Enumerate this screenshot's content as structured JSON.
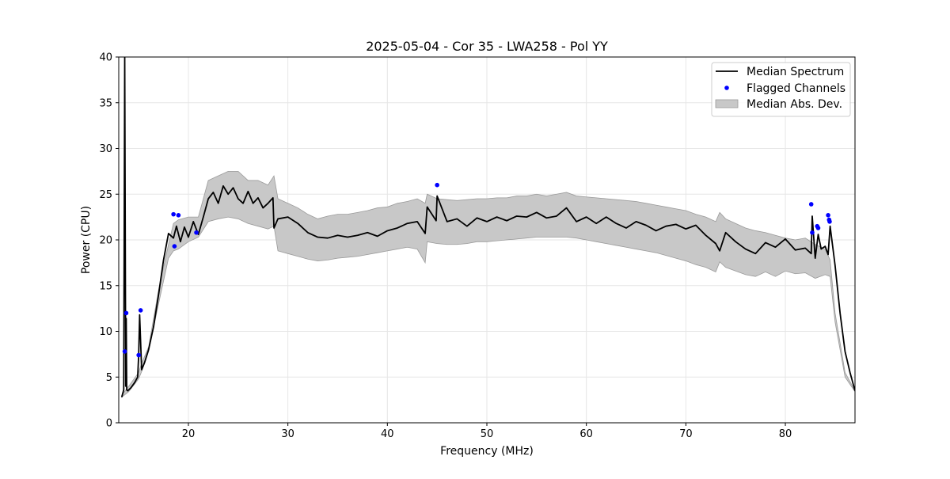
{
  "chart_data": {
    "type": "line",
    "title": "2025-05-04 - Cor 35 - LWA258 - Pol YY",
    "xlabel": "Frequency (MHz)",
    "ylabel": "Power (CPU)",
    "xlim": [
      13,
      87
    ],
    "ylim": [
      0,
      40
    ],
    "xticks": [
      20,
      30,
      40,
      50,
      60,
      70,
      80
    ],
    "yticks": [
      0,
      5,
      10,
      15,
      20,
      25,
      30,
      35,
      40
    ],
    "grid": true,
    "legend_position": "top-right",
    "colors": {
      "median": "#000000",
      "flagged": "#0000ff",
      "band_fill": "#c8c8c8",
      "band_edge": "#9a9a9a",
      "grid": "#e6e6e6"
    },
    "legend": [
      {
        "label": "Median Spectrum",
        "kind": "line"
      },
      {
        "label": "Flagged Channels",
        "kind": "marker"
      },
      {
        "label": "Median Abs. Dev.",
        "kind": "patch"
      }
    ],
    "series": [
      {
        "name": "Median Spectrum",
        "x": [
          13.3,
          13.5,
          13.6,
          13.7,
          13.75,
          13.8,
          13.9,
          14.2,
          14.6,
          14.9,
          15.0,
          15.1,
          15.3,
          15.6,
          16.0,
          16.5,
          17.0,
          17.5,
          18.0,
          18.5,
          18.8,
          19.2,
          19.6,
          20.0,
          20.5,
          21.0,
          21.5,
          22.0,
          22.5,
          23.0,
          23.5,
          24.0,
          24.5,
          25.0,
          25.5,
          26.0,
          26.5,
          27.0,
          27.5,
          28.0,
          28.5,
          28.6,
          29.0,
          30.0,
          31.0,
          32.0,
          33.0,
          34.0,
          35.0,
          36.0,
          37.0,
          38.0,
          39.0,
          40.0,
          41.0,
          42.0,
          43.0,
          43.8,
          44.0,
          44.9,
          45.0,
          46.0,
          47.0,
          48.0,
          49.0,
          50.0,
          51.0,
          52.0,
          53.0,
          54.0,
          55.0,
          56.0,
          57.0,
          58.0,
          59.0,
          60.0,
          61.0,
          62.0,
          63.0,
          64.0,
          65.0,
          66.0,
          67.0,
          68.0,
          69.0,
          70.0,
          71.0,
          72.0,
          73.0,
          73.4,
          74.0,
          75.0,
          76.0,
          77.0,
          78.0,
          79.0,
          80.0,
          81.0,
          82.0,
          82.6,
          82.7,
          83.0,
          83.3,
          83.6,
          84.0,
          84.3,
          84.5,
          85.0,
          85.5,
          86.0,
          86.5,
          87.0
        ],
        "values": [
          2.8,
          3.6,
          40.0,
          4.0,
          11.4,
          3.6,
          3.5,
          3.8,
          4.4,
          5.0,
          7.3,
          11.8,
          5.8,
          6.6,
          8.0,
          10.5,
          14.0,
          17.8,
          20.7,
          20.2,
          21.5,
          19.8,
          21.4,
          20.3,
          22.0,
          20.6,
          22.5,
          24.5,
          25.2,
          24.0,
          25.9,
          25.0,
          25.7,
          24.5,
          24.0,
          25.3,
          24.0,
          24.6,
          23.5,
          24.0,
          24.6,
          21.3,
          22.3,
          22.5,
          21.8,
          20.8,
          20.3,
          20.2,
          20.5,
          20.3,
          20.5,
          20.8,
          20.4,
          21.0,
          21.3,
          21.8,
          22.0,
          20.7,
          23.6,
          22.1,
          24.8,
          22.0,
          22.3,
          21.5,
          22.4,
          22.0,
          22.5,
          22.1,
          22.6,
          22.5,
          23.0,
          22.4,
          22.6,
          23.5,
          22.0,
          22.5,
          21.8,
          22.5,
          21.8,
          21.3,
          22.0,
          21.6,
          21.0,
          21.5,
          21.7,
          21.2,
          21.6,
          20.5,
          19.6,
          18.8,
          20.8,
          19.8,
          19.0,
          18.5,
          19.7,
          19.2,
          20.1,
          18.9,
          19.1,
          18.5,
          22.6,
          18.0,
          20.6,
          19.0,
          19.3,
          18.4,
          21.5,
          17.2,
          12.0,
          7.8,
          5.5,
          3.5
        ]
      },
      {
        "name": "Median Abs. Dev.",
        "x": [
          13.3,
          14.0,
          15.0,
          15.3,
          16.0,
          17.0,
          18.0,
          18.5,
          19.0,
          20.0,
          21.0,
          22.0,
          23.0,
          24.0,
          25.0,
          26.0,
          27.0,
          28.0,
          28.6,
          29.0,
          30.0,
          31.0,
          32.0,
          33.0,
          34.0,
          35.0,
          36.0,
          37.0,
          38.0,
          39.0,
          40.0,
          41.0,
          42.0,
          43.0,
          43.8,
          44.0,
          45.0,
          46.0,
          47.0,
          48.0,
          49.0,
          50.0,
          51.0,
          52.0,
          53.0,
          54.0,
          55.0,
          56.0,
          57.0,
          58.0,
          59.0,
          60.0,
          61.0,
          62.0,
          63.0,
          64.0,
          65.0,
          66.0,
          67.0,
          68.0,
          69.0,
          70.0,
          71.0,
          72.0,
          73.0,
          73.4,
          74.0,
          75.0,
          76.0,
          77.0,
          78.0,
          79.0,
          80.0,
          81.0,
          82.0,
          83.0,
          84.0,
          84.5,
          85.0,
          86.0,
          87.0
        ],
        "upper": [
          3.0,
          4.0,
          5.5,
          6.5,
          8.3,
          14.5,
          19.5,
          21.8,
          22.2,
          22.5,
          22.5,
          26.5,
          27.0,
          27.5,
          27.5,
          26.5,
          26.5,
          26.0,
          27.0,
          24.5,
          24.0,
          23.5,
          22.8,
          22.3,
          22.6,
          22.8,
          22.8,
          23.0,
          23.2,
          23.5,
          23.6,
          24.0,
          24.2,
          24.5,
          24.0,
          25.0,
          24.5,
          24.4,
          24.3,
          24.4,
          24.5,
          24.5,
          24.6,
          24.6,
          24.8,
          24.8,
          25.0,
          24.8,
          25.0,
          25.2,
          24.8,
          24.7,
          24.6,
          24.5,
          24.4,
          24.3,
          24.2,
          24.0,
          23.8,
          23.6,
          23.4,
          23.2,
          22.8,
          22.5,
          22.0,
          23.0,
          22.3,
          21.8,
          21.3,
          21.0,
          20.8,
          20.5,
          20.2,
          20.0,
          20.2,
          19.5,
          19.0,
          17.8,
          12.0,
          5.5,
          3.5
        ],
        "lower": [
          2.8,
          3.4,
          4.8,
          5.6,
          7.8,
          13.0,
          18.0,
          18.8,
          19.0,
          19.8,
          20.3,
          22.0,
          22.3,
          22.5,
          22.3,
          21.8,
          21.5,
          21.2,
          21.5,
          18.8,
          18.5,
          18.2,
          17.9,
          17.7,
          17.8,
          18.0,
          18.1,
          18.2,
          18.4,
          18.6,
          18.8,
          19.0,
          19.2,
          19.0,
          17.5,
          19.8,
          19.6,
          19.5,
          19.5,
          19.6,
          19.8,
          19.8,
          19.9,
          20.0,
          20.1,
          20.2,
          20.3,
          20.3,
          20.3,
          20.3,
          20.2,
          20.0,
          19.8,
          19.6,
          19.4,
          19.2,
          19.0,
          18.8,
          18.6,
          18.3,
          18.0,
          17.7,
          17.3,
          17.0,
          16.5,
          17.6,
          17.0,
          16.6,
          16.2,
          16.0,
          16.5,
          16.0,
          16.6,
          16.3,
          16.4,
          15.8,
          16.2,
          16.0,
          11.0,
          5.0,
          3.4
        ]
      },
      {
        "name": "Flagged Channels",
        "x": [
          13.6,
          13.75,
          15.0,
          15.2,
          18.5,
          18.6,
          19.0,
          20.8,
          45.0,
          82.6,
          82.7,
          83.2,
          83.3,
          84.3,
          84.4,
          84.45
        ],
        "values": [
          7.8,
          12.0,
          7.4,
          12.3,
          22.8,
          19.3,
          22.7,
          20.8,
          26.0,
          23.9,
          20.8,
          21.5,
          21.3,
          22.7,
          22.2,
          22.0
        ]
      }
    ]
  }
}
